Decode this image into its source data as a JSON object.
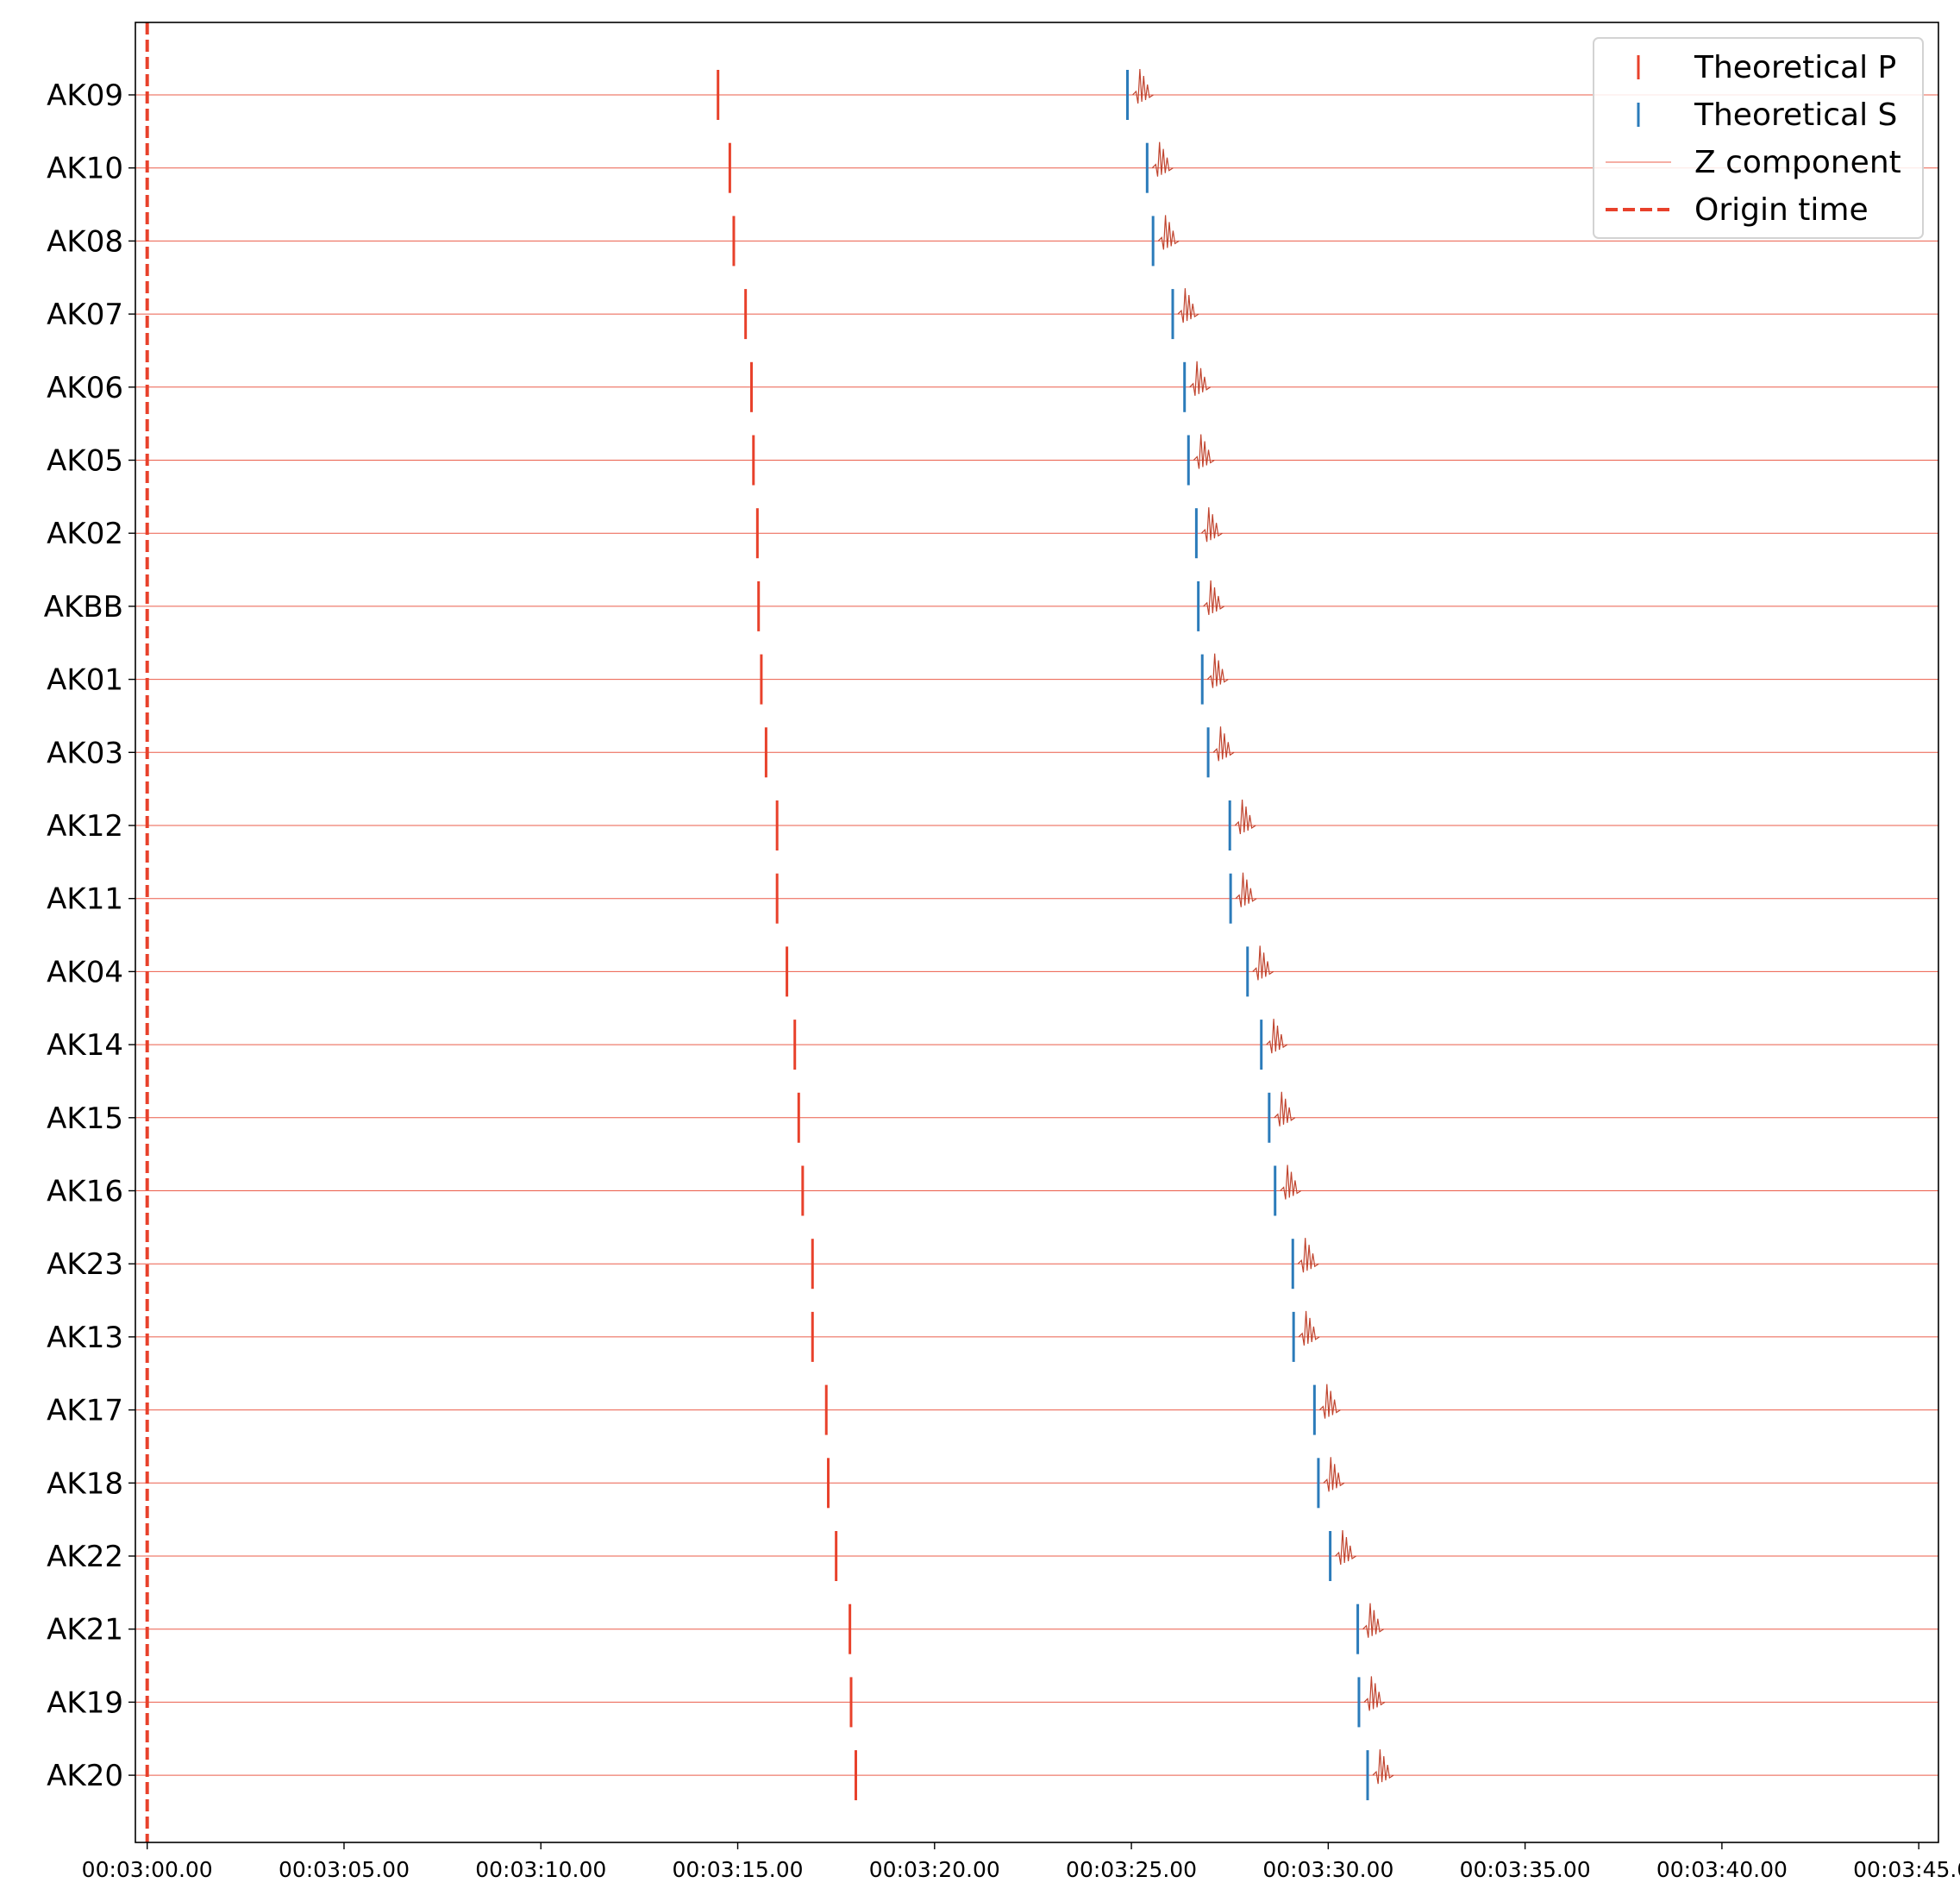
{
  "chart_data": {
    "type": "line",
    "title": "",
    "xlabel": "",
    "ylabel": "",
    "x_axis": {
      "unit": "seconds",
      "range": [
        -0.3,
        45.5
      ],
      "ticks": [
        0,
        5,
        10,
        15,
        20,
        25,
        30,
        35,
        40,
        45
      ],
      "tick_labels": [
        "00:03:00.00",
        "00:03:05.00",
        "00:03:10.00",
        "00:03:15.00",
        "00:03:20.00",
        "00:03:25.00",
        "00:03:30.00",
        "00:03:35.00",
        "00:03:40.00",
        "00:03:45.00"
      ]
    },
    "stations": [
      "AK09",
      "AK10",
      "AK08",
      "AK07",
      "AK06",
      "AK05",
      "AK02",
      "AKBB",
      "AK01",
      "AK03",
      "AK12",
      "AK11",
      "AK04",
      "AK14",
      "AK15",
      "AK16",
      "AK23",
      "AK13",
      "AK17",
      "AK18",
      "AK22",
      "AK21",
      "AK19",
      "AK20"
    ],
    "series": [
      {
        "name": "Theoretical P",
        "color": "#e8412b",
        "values": [
          14.5,
          14.8,
          14.9,
          15.2,
          15.35,
          15.4,
          15.5,
          15.53,
          15.6,
          15.72,
          16.0,
          16.0,
          16.25,
          16.45,
          16.55,
          16.65,
          16.9,
          16.9,
          17.25,
          17.3,
          17.5,
          17.85,
          17.88,
          18.0
        ]
      },
      {
        "name": "Theoretical S",
        "color": "#2b7bba",
        "values": [
          24.9,
          25.4,
          25.55,
          26.05,
          26.35,
          26.45,
          26.65,
          26.7,
          26.8,
          26.95,
          27.5,
          27.52,
          27.95,
          28.3,
          28.5,
          28.65,
          29.1,
          29.12,
          29.65,
          29.75,
          30.05,
          30.75,
          30.78,
          31.0
        ]
      },
      {
        "name": "Z component",
        "color": "#e8412b"
      },
      {
        "name": "Origin time",
        "color": "#e8412b",
        "value": 0
      }
    ],
    "legend_position": "top-right",
    "grid": false
  }
}
